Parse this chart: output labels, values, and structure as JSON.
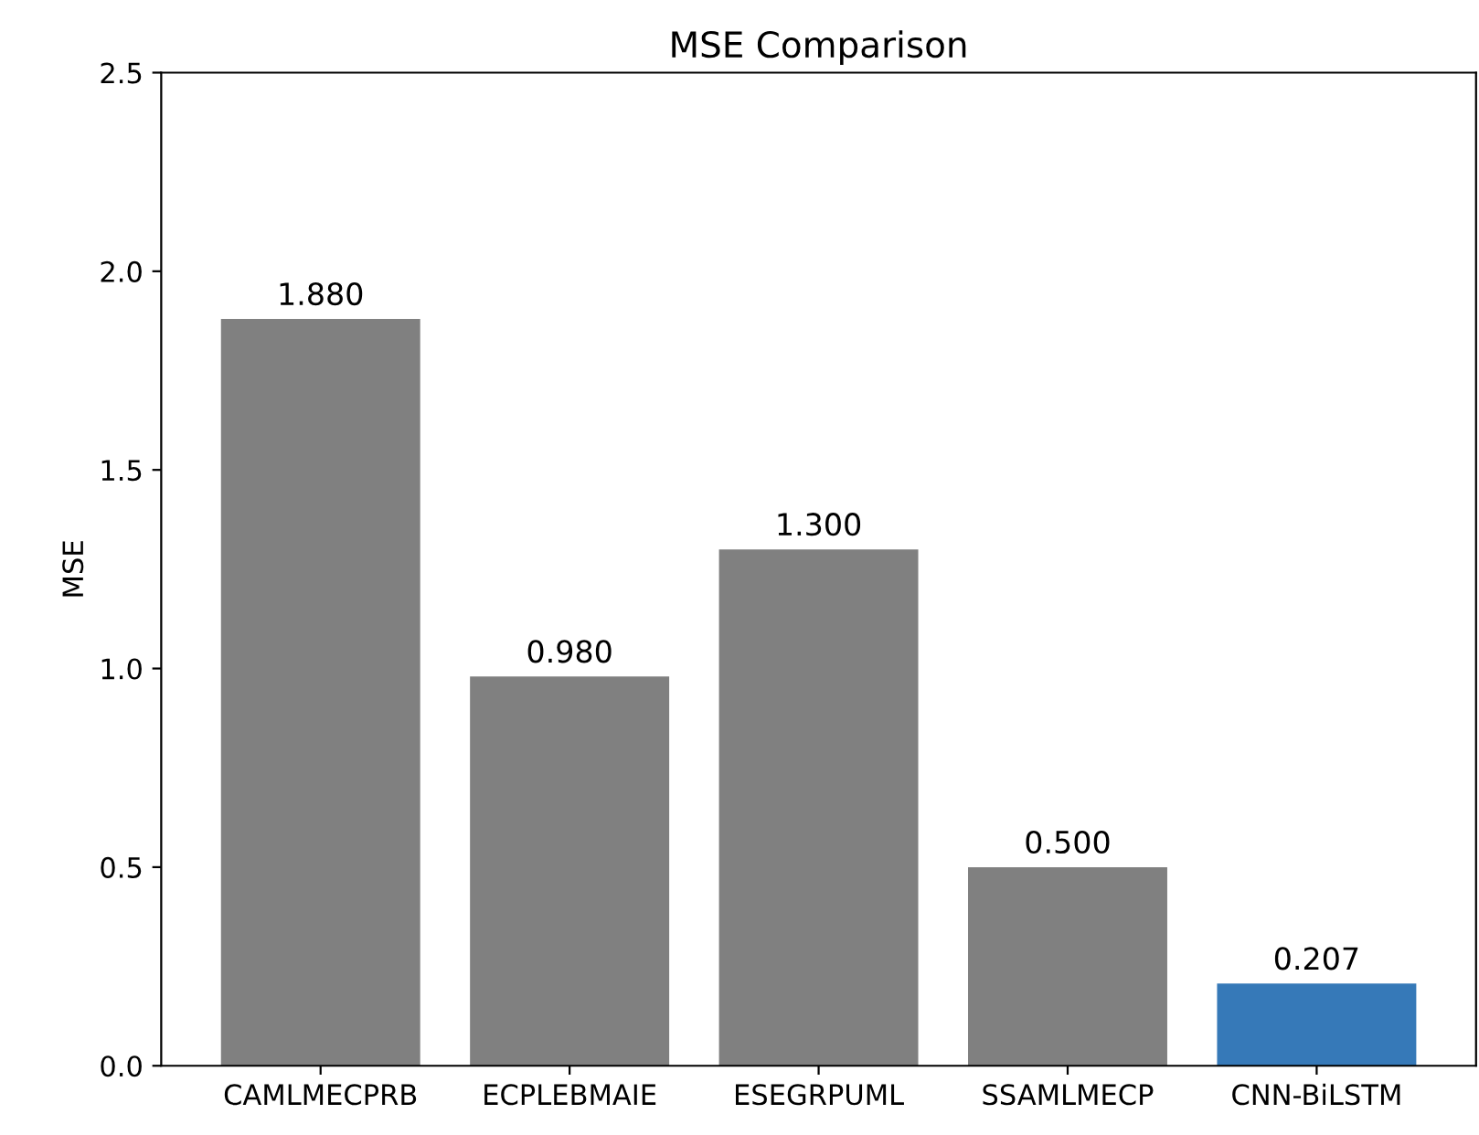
{
  "chart_data": {
    "type": "bar",
    "title": "MSE Comparison",
    "ylabel": "MSE",
    "categories": [
      "CAMLMECPRB",
      "ECPLEBMAIE",
      "ESEGRPUML",
      "SSAMLMECP",
      "CNN-BiLSTM"
    ],
    "values": [
      1.88,
      0.98,
      1.3,
      0.5,
      0.207
    ],
    "colors": [
      "#808080",
      "#808080",
      "#808080",
      "#808080",
      "#3679b8"
    ],
    "value_labels": [
      "1.880",
      "0.980",
      "1.300",
      "0.500",
      "0.207"
    ],
    "ylim": [
      0,
      2.5
    ],
    "yticks": [
      {
        "value": 0,
        "label": "0.0"
      },
      {
        "value": 0.5,
        "label": "0.5"
      },
      {
        "value": 1,
        "label": "1.0"
      },
      {
        "value": 1.5,
        "label": "1.5"
      },
      {
        "value": 2,
        "label": "2.0"
      },
      {
        "value": 2.5,
        "label": "2.5"
      }
    ],
    "grid": false
  }
}
